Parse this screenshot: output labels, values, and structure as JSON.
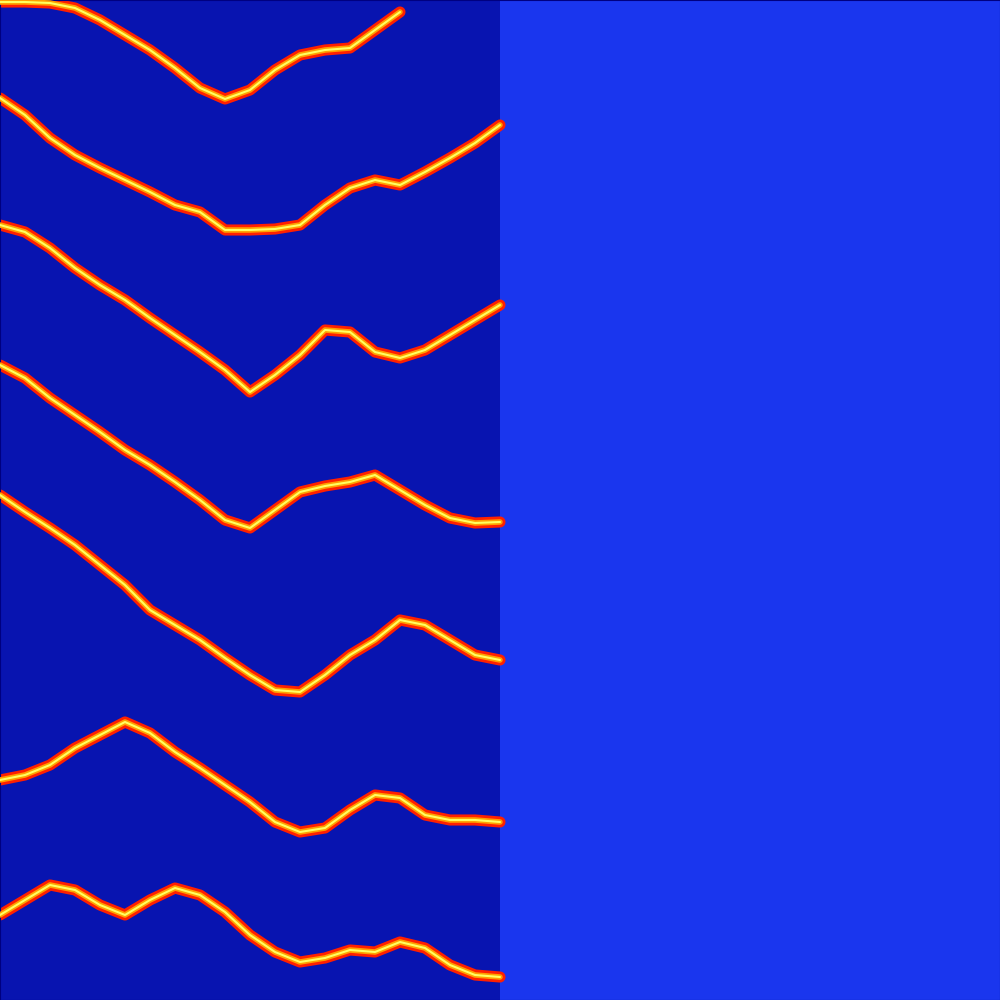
{
  "chart_data": {
    "type": "line",
    "x": [
      0,
      25,
      50,
      75,
      100,
      125,
      150,
      175,
      200,
      225,
      250,
      275,
      300,
      325,
      350,
      375,
      400,
      425,
      450,
      475,
      500
    ],
    "series": [
      {
        "color": "#ff2000",
        "values": [
          2,
          2,
          3,
          8,
          20,
          35,
          50,
          68,
          88,
          99,
          90,
          70,
          55,
          50,
          48,
          30,
          12,
          null,
          null,
          null,
          null
        ]
      },
      {
        "color": "#ff2000",
        "values": [
          98,
          115,
          138,
          155,
          168,
          180,
          192,
          205,
          212,
          230,
          230,
          229,
          225,
          205,
          188,
          180,
          185,
          172,
          158,
          143,
          125
        ]
      },
      {
        "color": "#ff2000",
        "values": [
          225,
          232,
          248,
          268,
          285,
          300,
          318,
          335,
          352,
          370,
          392,
          375,
          355,
          330,
          332,
          352,
          358,
          350,
          335,
          320,
          305
        ]
      },
      {
        "color": "#ff2000",
        "values": [
          365,
          378,
          398,
          415,
          432,
          450,
          465,
          482,
          500,
          520,
          528,
          510,
          492,
          486,
          482,
          475,
          490,
          505,
          518,
          523,
          522
        ]
      },
      {
        "color": "#ff2000",
        "values": [
          495,
          512,
          528,
          545,
          565,
          585,
          610,
          625,
          640,
          658,
          675,
          690,
          692,
          675,
          655,
          640,
          620,
          625,
          640,
          655,
          660
        ]
      },
      {
        "color": "#ff2000",
        "values": [
          780,
          775,
          765,
          748,
          735,
          722,
          733,
          752,
          768,
          785,
          802,
          822,
          832,
          828,
          810,
          795,
          798,
          815,
          820,
          820,
          822
        ]
      },
      {
        "color": "#ff2000",
        "values": [
          915,
          900,
          885,
          890,
          905,
          915,
          900,
          888,
          895,
          912,
          935,
          952,
          962,
          958,
          950,
          952,
          942,
          948,
          965,
          975,
          977
        ]
      }
    ],
    "xlim": [
      0,
      1000
    ],
    "ylim": [
      1000,
      0
    ],
    "tick_labels": false
  }
}
